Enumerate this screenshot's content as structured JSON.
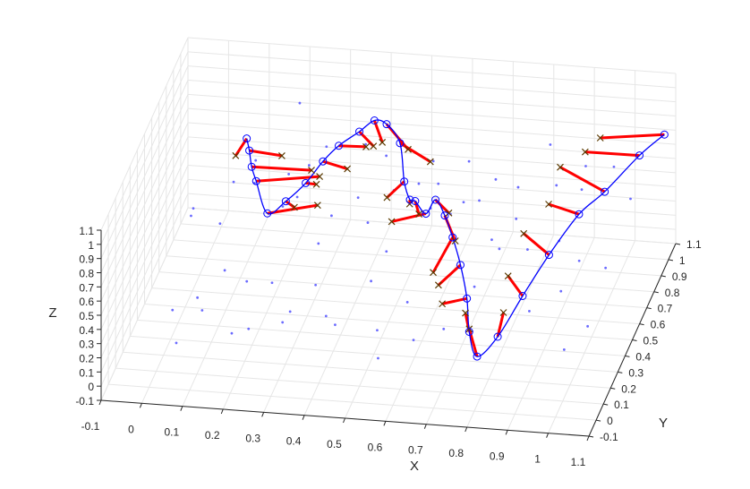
{
  "chart_data": {
    "type": "scatter",
    "view": "3d",
    "grid": true,
    "axes": {
      "x": {
        "label": "X",
        "ticks": [
          "-0.1",
          "0",
          "0.1",
          "0.2",
          "0.3",
          "0.4",
          "0.5",
          "0.6",
          "0.7",
          "0.8",
          "0.9",
          "1",
          "1.1"
        ],
        "lim": [
          -0.1,
          1.1
        ]
      },
      "y": {
        "label": "Y",
        "ticks": [
          "-0.1",
          "0",
          "0.1",
          "0.2",
          "0.3",
          "0.4",
          "0.5",
          "0.6",
          "0.7",
          "0.8",
          "0.9",
          "1",
          "1.1"
        ],
        "lim": [
          -0.1,
          1.1
        ]
      },
      "z": {
        "label": "Z",
        "ticks": [
          "-0.1",
          "0",
          "0.1",
          "0.2",
          "0.3",
          "0.4",
          "0.5",
          "0.6",
          "0.7",
          "0.8",
          "0.9",
          "1",
          "1.1"
        ],
        "lim": [
          -0.1,
          1.1
        ]
      }
    },
    "colors": {
      "scatter": "#6b6bff",
      "curve": "#0000ff",
      "circle": "#0000ff",
      "segment": "#ff0000",
      "cross": "#5a3a00",
      "grid": "#e6e6e6",
      "axis": "#262626"
    },
    "curve_points": [
      [
        0.13,
        0.62,
        0.98
      ],
      [
        0.14,
        0.6,
        0.92
      ],
      [
        0.16,
        0.52,
        0.9
      ],
      [
        0.18,
        0.47,
        0.86
      ],
      [
        0.22,
        0.4,
        0.72
      ],
      [
        0.26,
        0.43,
        0.78
      ],
      [
        0.3,
        0.48,
        0.86
      ],
      [
        0.33,
        0.55,
        0.94
      ],
      [
        0.36,
        0.6,
        1.0
      ],
      [
        0.4,
        0.66,
        1.04
      ],
      [
        0.43,
        0.7,
        1.08
      ],
      [
        0.46,
        0.7,
        1.06
      ],
      [
        0.5,
        0.66,
        0.98
      ],
      [
        0.53,
        0.55,
        0.84
      ],
      [
        0.56,
        0.46,
        0.82
      ],
      [
        0.58,
        0.42,
        0.86
      ],
      [
        0.61,
        0.4,
        0.8
      ],
      [
        0.63,
        0.42,
        0.88
      ],
      [
        0.66,
        0.38,
        0.82
      ],
      [
        0.69,
        0.32,
        0.74
      ],
      [
        0.72,
        0.26,
        0.62
      ],
      [
        0.75,
        0.18,
        0.48
      ],
      [
        0.77,
        0.1,
        0.34
      ],
      [
        0.8,
        0.04,
        0.24
      ],
      [
        0.84,
        0.1,
        0.32
      ],
      [
        0.88,
        0.22,
        0.48
      ],
      [
        0.92,
        0.36,
        0.62
      ],
      [
        0.96,
        0.55,
        0.7
      ],
      [
        1.0,
        0.68,
        0.72
      ],
      [
        1.05,
        0.88,
        0.76
      ],
      [
        1.09,
        1.0,
        0.78
      ]
    ],
    "segment_ends": [
      [
        0.11,
        0.58,
        0.9
      ],
      [
        0.22,
        0.6,
        0.9
      ],
      [
        0.3,
        0.56,
        0.86
      ],
      [
        0.32,
        0.56,
        0.82
      ],
      [
        0.34,
        0.42,
        0.78
      ],
      [
        0.29,
        0.38,
        0.8
      ],
      [
        0.33,
        0.46,
        0.88
      ],
      [
        0.39,
        0.55,
        0.9
      ],
      [
        0.42,
        0.64,
        0.96
      ],
      [
        0.44,
        0.63,
        0.98
      ],
      [
        0.46,
        0.64,
        1.0
      ],
      [
        0.52,
        0.66,
        0.94
      ],
      [
        0.58,
        0.63,
        0.9
      ],
      [
        0.5,
        0.48,
        0.8
      ],
      [
        0.57,
        0.4,
        0.86
      ],
      [
        0.6,
        0.36,
        0.84
      ],
      [
        0.54,
        0.32,
        0.82
      ],
      [
        0.67,
        0.38,
        0.84
      ],
      [
        0.7,
        0.3,
        0.74
      ],
      [
        0.66,
        0.22,
        0.6
      ],
      [
        0.68,
        0.18,
        0.56
      ],
      [
        0.7,
        0.12,
        0.5
      ],
      [
        0.75,
        0.16,
        0.4
      ],
      [
        0.77,
        0.1,
        0.36
      ],
      [
        0.84,
        0.18,
        0.4
      ],
      [
        0.83,
        0.3,
        0.52
      ],
      [
        0.84,
        0.46,
        0.64
      ],
      [
        0.88,
        0.58,
        0.72
      ],
      [
        0.88,
        0.74,
        0.8
      ],
      [
        0.92,
        0.86,
        0.78
      ],
      [
        0.95,
        0.9,
        0.84
      ]
    ],
    "scatter_points": [
      [
        0.05,
        0.3,
        0.78
      ],
      [
        0.08,
        0.72,
        0.55
      ],
      [
        0.12,
        0.8,
        0.62
      ],
      [
        0.18,
        0.92,
        0.4
      ],
      [
        0.2,
        0.96,
        0.86
      ],
      [
        0.24,
        0.7,
        0.5
      ],
      [
        0.28,
        0.88,
        0.66
      ],
      [
        0.31,
        0.6,
        0.3
      ],
      [
        0.34,
        0.98,
        0.2
      ],
      [
        0.38,
        0.86,
        0.72
      ],
      [
        0.42,
        0.92,
        0.58
      ],
      [
        0.46,
        0.8,
        0.48
      ],
      [
        0.5,
        0.92,
        0.4
      ],
      [
        0.55,
        0.84,
        0.66
      ],
      [
        0.58,
        0.74,
        0.62
      ],
      [
        0.62,
        0.94,
        0.56
      ],
      [
        0.66,
        0.64,
        0.62
      ],
      [
        0.7,
        0.86,
        0.54
      ],
      [
        0.74,
        0.58,
        0.44
      ],
      [
        0.78,
        0.72,
        0.66
      ],
      [
        0.82,
        0.94,
        0.72
      ],
      [
        0.86,
        0.8,
        0.6
      ],
      [
        0.9,
        0.98,
        0.54
      ],
      [
        0.94,
        0.7,
        0.7
      ],
      [
        0.98,
        0.92,
        0.62
      ],
      [
        1.02,
        0.58,
        0.3
      ],
      [
        0.04,
        0.1,
        0.34
      ],
      [
        0.08,
        0.22,
        0.3
      ],
      [
        0.14,
        0.26,
        0.46
      ],
      [
        0.18,
        0.34,
        0.3
      ],
      [
        0.22,
        0.14,
        0.2
      ],
      [
        0.26,
        0.24,
        0.42
      ],
      [
        0.3,
        0.16,
        0.24
      ],
      [
        0.36,
        0.28,
        0.38
      ],
      [
        0.4,
        0.2,
        0.26
      ],
      [
        0.44,
        0.1,
        0.32
      ],
      [
        0.5,
        0.26,
        0.46
      ],
      [
        0.54,
        0.12,
        0.28
      ],
      [
        0.6,
        0.2,
        0.4
      ],
      [
        0.64,
        0.06,
        0.3
      ],
      [
        0.7,
        0.14,
        0.3
      ],
      [
        0.74,
        0.34,
        0.38
      ],
      [
        0.78,
        0.46,
        0.52
      ],
      [
        0.86,
        0.4,
        0.6
      ],
      [
        0.9,
        0.2,
        0.4
      ],
      [
        0.96,
        0.3,
        0.44
      ],
      [
        1.0,
        0.12,
        0.24
      ],
      [
        1.04,
        0.22,
        0.3
      ],
      [
        0.1,
        0.42,
        0.6
      ],
      [
        0.16,
        0.56,
        0.74
      ],
      [
        0.24,
        0.5,
        0.66
      ],
      [
        0.28,
        0.64,
        0.8
      ],
      [
        0.36,
        0.5,
        0.62
      ],
      [
        0.46,
        0.44,
        0.66
      ],
      [
        0.52,
        0.36,
        0.56
      ],
      [
        0.6,
        0.52,
        0.7
      ],
      [
        0.66,
        0.46,
        0.74
      ],
      [
        0.72,
        0.52,
        0.78
      ],
      [
        0.8,
        0.58,
        0.6
      ],
      [
        0.92,
        0.5,
        0.56
      ],
      [
        0.98,
        0.44,
        0.5
      ],
      [
        1.06,
        0.7,
        0.66
      ],
      [
        0.02,
        0.5,
        0.6
      ],
      [
        0.06,
        0.04,
        0.18
      ],
      [
        0.12,
        0.06,
        0.4
      ],
      [
        0.2,
        0.02,
        0.3
      ],
      [
        0.34,
        0.04,
        0.46
      ],
      [
        0.56,
        0.02,
        0.2
      ]
    ]
  }
}
